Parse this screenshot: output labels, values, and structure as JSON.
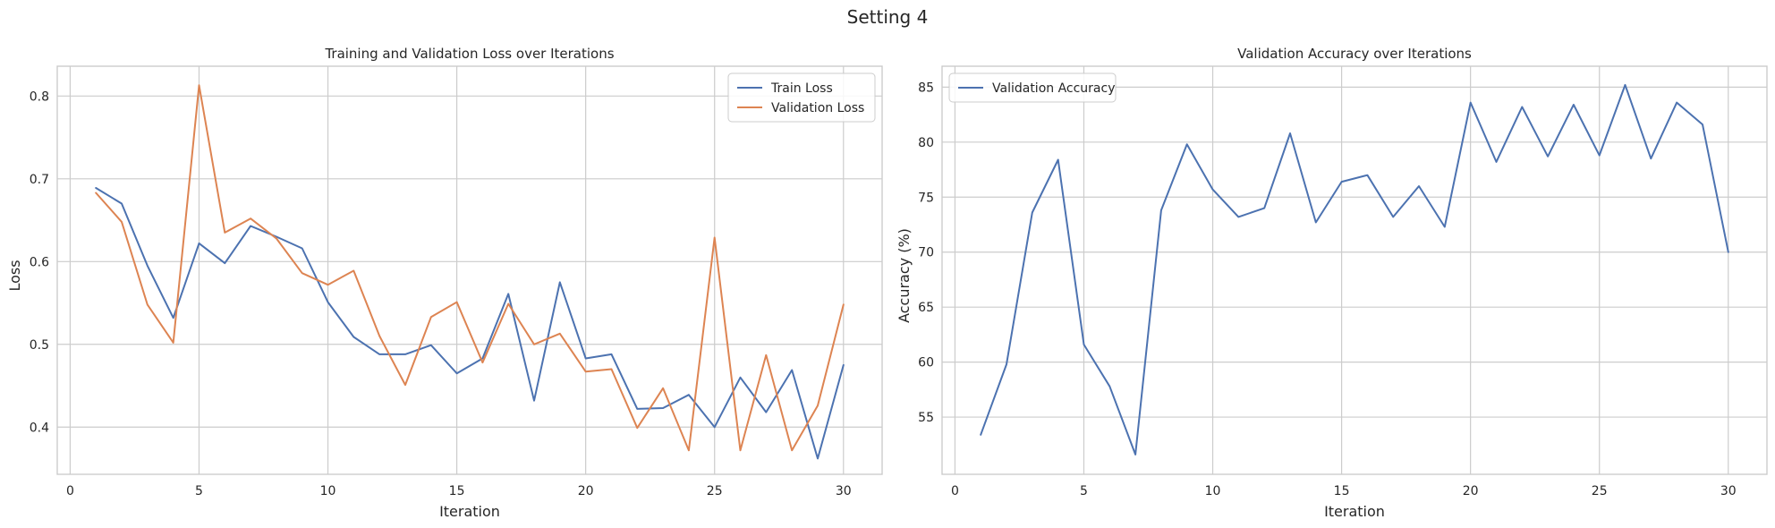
{
  "figure": {
    "title": "Setting 4"
  },
  "colors": {
    "blue": "#4c72b0",
    "orange": "#dd8452",
    "grid": "#cccccc",
    "spine": "#cccccc",
    "text": "#262626"
  },
  "chart_data": [
    {
      "type": "line",
      "title": "Training and Validation Loss over Iterations",
      "xlabel": "Iteration",
      "ylabel": "Loss",
      "xlim": [
        -0.5,
        31.5
      ],
      "ylim": [
        0.343,
        0.836
      ],
      "xticks": [
        0,
        5,
        10,
        15,
        20,
        25,
        30
      ],
      "yticks": [
        0.4,
        0.5,
        0.6,
        0.7,
        0.8
      ],
      "ytick_labels": [
        "0.4",
        "0.5",
        "0.6",
        "0.7",
        "0.8"
      ],
      "grid": true,
      "legend": "upper right",
      "x": [
        1,
        2,
        3,
        4,
        5,
        6,
        7,
        8,
        9,
        10,
        11,
        12,
        13,
        14,
        15,
        16,
        17,
        18,
        19,
        20,
        21,
        22,
        23,
        24,
        25,
        26,
        27,
        28,
        29,
        30
      ],
      "series": [
        {
          "name": "Train Loss",
          "color": "#4c72b0",
          "values": [
            0.689,
            0.67,
            0.595,
            0.532,
            0.622,
            0.598,
            0.643,
            0.63,
            0.616,
            0.551,
            0.509,
            0.488,
            0.488,
            0.499,
            0.465,
            0.483,
            0.561,
            0.432,
            0.575,
            0.483,
            0.488,
            0.422,
            0.423,
            0.439,
            0.4,
            0.46,
            0.418,
            0.469,
            0.362,
            0.475
          ]
        },
        {
          "name": "Validation Loss",
          "color": "#dd8452",
          "values": [
            0.683,
            0.648,
            0.548,
            0.502,
            0.813,
            0.635,
            0.652,
            0.628,
            0.586,
            0.572,
            0.589,
            0.51,
            0.451,
            0.533,
            0.551,
            0.478,
            0.549,
            0.5,
            0.513,
            0.467,
            0.47,
            0.399,
            0.447,
            0.372,
            0.629,
            0.372,
            0.487,
            0.372,
            0.426,
            0.548
          ]
        }
      ]
    },
    {
      "type": "line",
      "title": "Validation Accuracy over Iterations",
      "xlabel": "Iteration",
      "ylabel": "Accuracy (%)",
      "xlim": [
        -0.5,
        31.5
      ],
      "ylim": [
        49.8,
        86.9
      ],
      "xticks": [
        0,
        5,
        10,
        15,
        20,
        25,
        30
      ],
      "yticks": [
        55,
        60,
        65,
        70,
        75,
        80,
        85
      ],
      "ytick_labels": [
        "55",
        "60",
        "65",
        "70",
        "75",
        "80",
        "85"
      ],
      "grid": true,
      "legend": "upper left",
      "x": [
        1,
        2,
        3,
        4,
        5,
        6,
        7,
        8,
        9,
        10,
        11,
        12,
        13,
        14,
        15,
        16,
        17,
        18,
        19,
        20,
        21,
        22,
        23,
        24,
        25,
        26,
        27,
        28,
        29,
        30
      ],
      "series": [
        {
          "name": "Validation Accuracy",
          "color": "#4c72b0",
          "values": [
            53.4,
            59.8,
            73.6,
            78.4,
            61.6,
            57.8,
            51.6,
            73.8,
            79.8,
            75.7,
            73.2,
            74.0,
            80.8,
            72.7,
            76.4,
            77.0,
            73.2,
            76.0,
            72.3,
            83.6,
            78.2,
            83.2,
            78.7,
            83.4,
            78.8,
            85.2,
            78.5,
            83.6,
            81.6,
            70.0
          ]
        }
      ]
    }
  ]
}
